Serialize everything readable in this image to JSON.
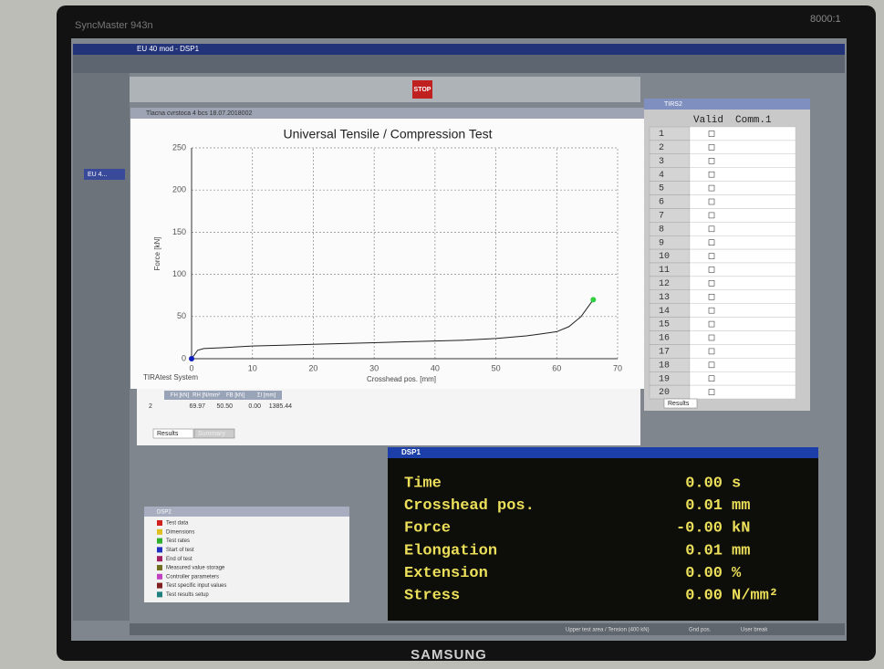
{
  "monitor": {
    "model": "SyncMaster 943n",
    "contrast": "8000:1",
    "brand": "SAMSUNG"
  },
  "app": {
    "title": "EU 40 mod - DSP1",
    "toolbar_stop": "STOP",
    "taskbar_item": "EU 4..."
  },
  "chart_window": {
    "title": "Tlacna cvrstoca 4 bcs 18.07.2018002"
  },
  "chart_data": {
    "type": "line",
    "title": "Universal Tensile / Compression Test",
    "x_label": "Crosshead pos. [mm]",
    "y_label": "Force [kN]",
    "footer": "TIRAtest System",
    "x": [
      0,
      1,
      2,
      5,
      10,
      15,
      20,
      25,
      30,
      35,
      40,
      45,
      50,
      55,
      57,
      60,
      62,
      64,
      66
    ],
    "values": [
      0,
      10,
      12,
      13,
      15,
      16,
      17,
      18,
      19,
      20,
      21,
      22,
      24,
      27,
      29,
      32,
      38,
      50,
      70
    ],
    "color": "#202020",
    "xlim": [
      0,
      70
    ],
    "ylim": [
      0,
      250
    ],
    "xticks": [
      0,
      10,
      20,
      30,
      40,
      50,
      60,
      70
    ],
    "yticks": [
      0,
      50,
      100,
      150,
      200,
      250
    ],
    "grid": true
  },
  "results": {
    "headers": [
      "FH [kN]",
      "RH [N/mm²]",
      "FB [kN]",
      "ΣI [mm]"
    ],
    "rows": [
      [
        "2",
        "69.97",
        "50.50",
        "0.00",
        "1385.44"
      ]
    ],
    "tabs": [
      "Results",
      "Summary"
    ]
  },
  "tirs2": {
    "title": "TIRS2",
    "headers": [
      "Valid",
      "Comm.1"
    ],
    "rows": [
      1,
      2,
      3,
      4,
      5,
      6,
      7,
      8,
      9,
      10,
      11,
      12,
      13,
      14,
      15,
      16,
      17,
      18,
      19,
      20
    ],
    "tab": "Results"
  },
  "dsp1": {
    "title": "DSP1",
    "rows": [
      {
        "label": "Time",
        "value": "0.00",
        "unit": "s"
      },
      {
        "label": "Crosshead pos.",
        "value": "0.01",
        "unit": "mm"
      },
      {
        "label": "Force",
        "value": "-0.00",
        "unit": "kN"
      },
      {
        "label": "Elongation",
        "value": "0.01",
        "unit": "mm"
      },
      {
        "label": "Extension",
        "value": "0.00",
        "unit": "%"
      },
      {
        "label": "Stress",
        "value": "0.00",
        "unit": "N/mm²"
      }
    ]
  },
  "dsp2": {
    "title": "DSP2",
    "items": [
      {
        "label": "Test data",
        "color": "#d02020"
      },
      {
        "label": "Dimensions",
        "color": "#e0c020"
      },
      {
        "label": "Test rates",
        "color": "#30b030"
      },
      {
        "label": "Start of test",
        "color": "#2030c0"
      },
      {
        "label": "End of test",
        "color": "#a02060"
      },
      {
        "label": "Measured value storage",
        "color": "#707020"
      },
      {
        "label": "Controller parameters",
        "color": "#c040c0"
      },
      {
        "label": "Test specific input values",
        "color": "#802020"
      },
      {
        "label": "Test results setup",
        "color": "#208080"
      }
    ]
  },
  "status": [
    "Upper test area / Tension (400 kN)",
    "Gnd pos.",
    "User break"
  ]
}
